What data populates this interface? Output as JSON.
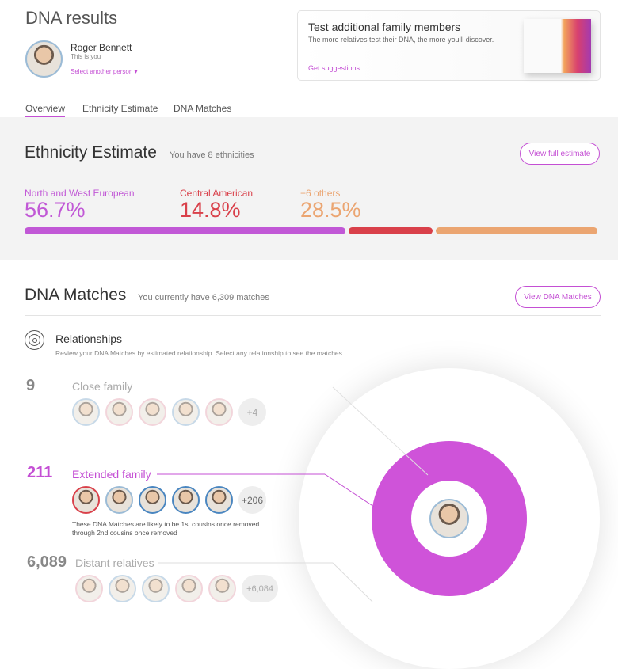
{
  "header": {
    "title": "DNA results",
    "user_name": "Roger Bennett",
    "user_sub": "This is you",
    "select_person": "Select another person"
  },
  "promo": {
    "title": "Test additional family members",
    "text": "The more relatives test their DNA, the more you'll discover.",
    "link": "Get suggestions"
  },
  "tabs": [
    {
      "label": "Overview",
      "active": true
    },
    {
      "label": "Ethnicity Estimate"
    },
    {
      "label": "DNA Matches"
    }
  ],
  "ethnicity": {
    "title": "Ethnicity Estimate",
    "subtitle": "You have 8 ethnicities",
    "button": "View full estimate",
    "regions": [
      {
        "name": "North and West European",
        "percent": "56.7%",
        "value": 56.7,
        "color": "#c158d6"
      },
      {
        "name": "Central American",
        "percent": "14.8%",
        "value": 14.8,
        "color": "#d9404a"
      },
      {
        "name": "+6 others",
        "percent": "28.5%",
        "value": 28.5,
        "color": "#eba571"
      }
    ]
  },
  "matches": {
    "title": "DNA Matches",
    "subtitle": "You currently have 6,309 matches",
    "button": "View DNA Matches",
    "relationships_title": "Relationships",
    "relationships_desc": "Review your DNA Matches by estimated relationship. Select any relationship to see the matches.",
    "groups": [
      {
        "count": "9",
        "label": "Close family",
        "more": "+4"
      },
      {
        "count": "211",
        "label": "Extended family",
        "more": "+206",
        "desc": "These DNA Matches are likely to be 1st cousins once removed through 2nd cousins once removed"
      },
      {
        "count": "6,089",
        "label": "Distant relatives",
        "more": "+6,084"
      }
    ]
  },
  "colors": {
    "accent": "#c44fd4"
  }
}
